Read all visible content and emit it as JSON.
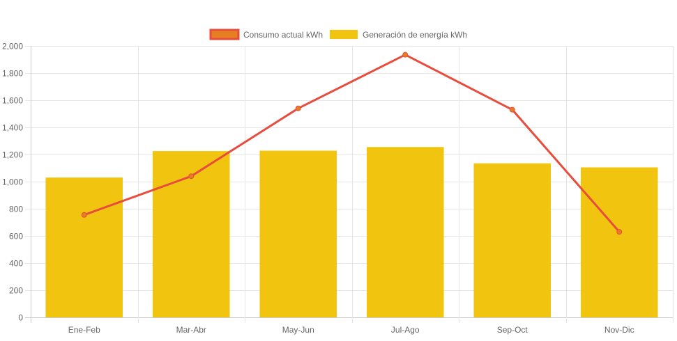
{
  "chart_data": {
    "type": "bar",
    "categories": [
      "Ene-Feb",
      "Mar-Abr",
      "May-Jun",
      "Jul-Ago",
      "Sep-Oct",
      "Nov-Dic"
    ],
    "series": [
      {
        "name": "Consumo actual kWh",
        "kind": "line",
        "color": "#e74c3c",
        "fill_color": "#e67e22",
        "values": [
          755,
          1040,
          1540,
          1935,
          1530,
          630
        ]
      },
      {
        "name": "Generación de energía kWh",
        "kind": "bar",
        "color": "#f1c40f",
        "values": [
          1030,
          1225,
          1228,
          1255,
          1135,
          1105
        ]
      }
    ],
    "ylim": [
      0,
      2000
    ],
    "y_ticks": [
      0,
      200,
      400,
      600,
      800,
      1000,
      1200,
      1400,
      1600,
      1800,
      2000
    ],
    "y_tick_labels": [
      "0",
      "200",
      "400",
      "600",
      "800",
      "1,000",
      "1,200",
      "1,400",
      "1,600",
      "1,800",
      "2,000"
    ],
    "grid": true,
    "legend_position": "top"
  }
}
